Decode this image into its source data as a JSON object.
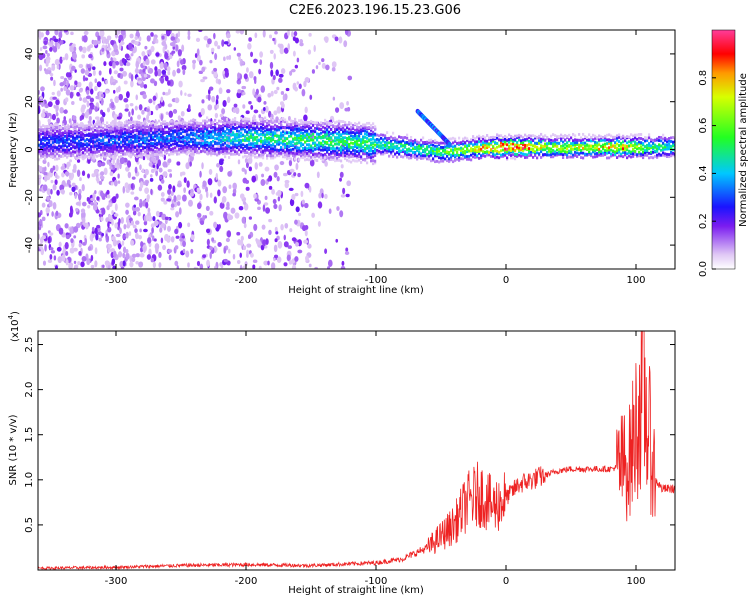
{
  "figure": {
    "title": "C2E6.2023.196.15.23.G06"
  },
  "chart_data": [
    {
      "type": "heatmap",
      "xlabel": "Height of straight line (km)",
      "ylabel": "Frequency (Hz)",
      "xlim": [
        -360,
        130
      ],
      "ylim": [
        -50,
        50
      ],
      "xticks": [
        -300,
        -200,
        -100,
        0,
        100
      ],
      "yticks": [
        -40,
        -20,
        0,
        20,
        40
      ],
      "colorbar": {
        "label": "Normalized spectral amplitude",
        "range": [
          0,
          1
        ],
        "ticks": [
          0.0,
          0.2,
          0.4,
          0.6,
          0.8
        ],
        "colors": [
          "#ffffff",
          "#e0c8f5",
          "#7a1cf0",
          "#1a14ff",
          "#00c8ff",
          "#22ff22",
          "#d8ff00",
          "#ff9900",
          "#ff0000",
          "#ff3c9a"
        ]
      },
      "ridge": {
        "description_points_x": [
          -360,
          -250,
          -200,
          -150,
          -110,
          -80,
          -50,
          -30,
          -10,
          10,
          30,
          60,
          90,
          110,
          130
        ],
        "center_frequency": [
          3,
          5,
          5,
          4,
          3,
          1,
          -1,
          0,
          1,
          1,
          1,
          1,
          1,
          1,
          1
        ],
        "peak_amplitude": [
          0.3,
          0.35,
          0.5,
          0.55,
          0.55,
          0.55,
          0.6,
          0.7,
          0.9,
          0.95,
          0.7,
          0.75,
          0.85,
          0.6,
          0.5
        ]
      },
      "grid": false
    },
    {
      "type": "line",
      "xlabel": "Height of straight line (km)",
      "ylabel": "SNR (10 * v/v)",
      "y_multiplier_label": "(x10",
      "y_multiplier_exp": "4",
      "y_multiplier_close": ")",
      "xlim": [
        -360,
        130
      ],
      "ylim": [
        0,
        2.65
      ],
      "xticks": [
        -300,
        -200,
        -100,
        0,
        100
      ],
      "yticks": [
        0.5,
        1.0,
        1.5,
        2.0,
        2.5
      ],
      "series": [
        {
          "color": "#ee2222",
          "x": [
            -360,
            -300,
            -250,
            -200,
            -150,
            -100,
            -80,
            -60,
            -40,
            -30,
            -20,
            -10,
            0,
            10,
            20,
            30,
            40,
            50,
            60,
            70,
            80,
            90,
            95,
            100,
            105,
            110,
            115,
            120,
            130
          ],
          "y": [
            0.02,
            0.03,
            0.05,
            0.06,
            0.05,
            0.08,
            0.12,
            0.25,
            0.5,
            0.75,
            0.85,
            0.7,
            0.8,
            0.95,
            1.0,
            1.05,
            1.1,
            1.12,
            1.12,
            1.12,
            1.12,
            1.15,
            1.2,
            1.6,
            2.0,
            1.5,
            1.0,
            0.9,
            0.9
          ]
        }
      ],
      "grid": false
    }
  ]
}
